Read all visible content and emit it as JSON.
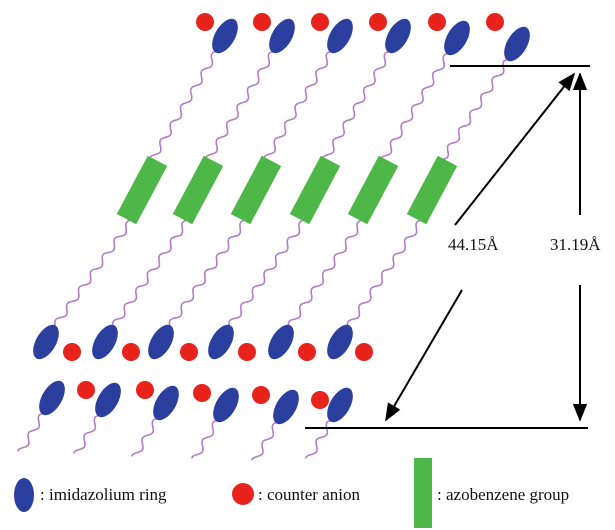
{
  "dimensions": {
    "diagonal": "44.15Å",
    "vertical": "31.19Å"
  },
  "legend": [
    {
      "label": ": imidazolium ring"
    },
    {
      "label": ": counter anion"
    },
    {
      "label": ": azobenzene group"
    }
  ]
}
